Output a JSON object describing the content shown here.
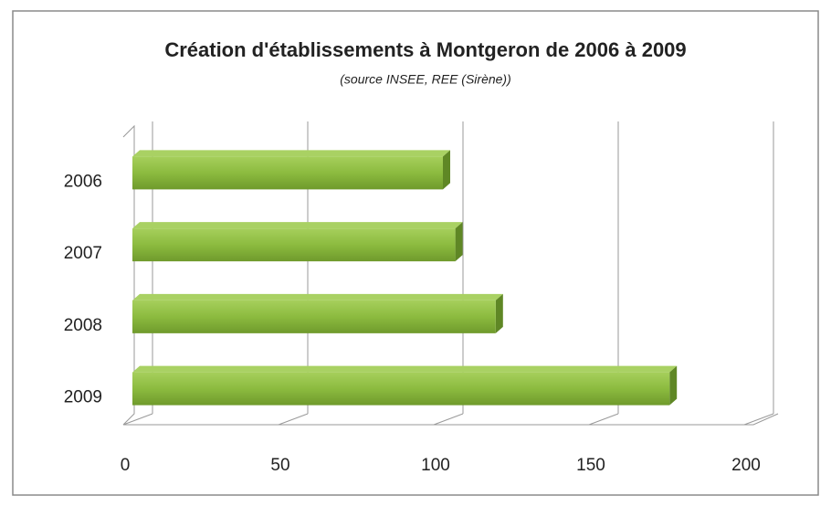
{
  "chart_data": {
    "type": "bar",
    "orientation": "horizontal",
    "title": "Création d'établissements à Montgeron  de 2006 à 2009",
    "subtitle": "(source  INSEE, REE (Sirène))",
    "categories": [
      "2006",
      "2007",
      "2008",
      "2009"
    ],
    "values": [
      100,
      104,
      117,
      173
    ],
    "color": "#8cbb3f",
    "xlim": [
      0,
      200
    ],
    "xticks": [
      0,
      50,
      100,
      150,
      200
    ],
    "grid": true
  }
}
